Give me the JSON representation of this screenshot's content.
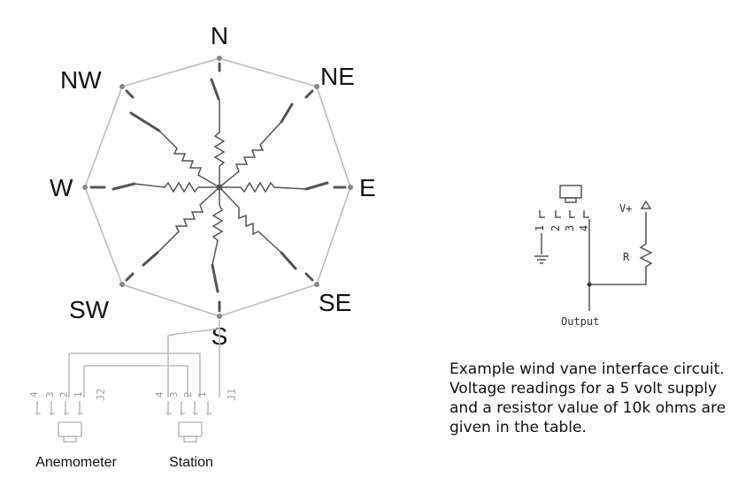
{
  "compass": {
    "n": "N",
    "ne": "NE",
    "e": "E",
    "se": "SE",
    "s": "S",
    "sw": "SW",
    "w": "W",
    "nw": "NW"
  },
  "connectors": {
    "anemometer": "Anemometer",
    "station": "Station",
    "j1": "J1",
    "j2": "J2",
    "pins": [
      "1",
      "2",
      "3",
      "4"
    ]
  },
  "circuit": {
    "supply": "V+",
    "resistor": "R",
    "output": "Output",
    "pins": [
      "1",
      "2",
      "3",
      "4"
    ]
  },
  "caption": "Example wind vane interface circuit.  Voltage readings for a 5 volt supply and a resistor value of 10k ohms are given in the table."
}
